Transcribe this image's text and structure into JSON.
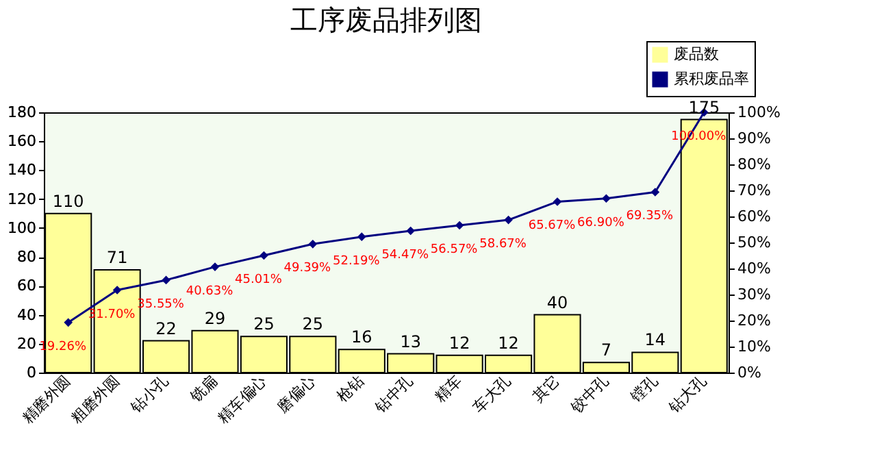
{
  "chart_data": {
    "type": "bar",
    "title": "工序废品排列图",
    "categories": [
      "精磨外圆",
      "粗磨外圆",
      "钻小孔",
      "铣扁",
      "精车偏心",
      "磨偏心",
      "枪钻",
      "钻中孔",
      "精车",
      "车大孔",
      "其它",
      "铰中孔",
      "镗孔",
      "钻大孔"
    ],
    "series": [
      {
        "name": "废品数",
        "color": "#ffff99",
        "values": [
          110,
          71,
          22,
          29,
          25,
          25,
          16,
          13,
          12,
          12,
          40,
          7,
          14,
          175
        ]
      },
      {
        "name": "累积废品率",
        "type": "line",
        "axis": "y2",
        "color": "#000080",
        "values": [
          19.26,
          31.7,
          35.55,
          40.63,
          45.01,
          49.39,
          52.19,
          54.47,
          56.57,
          58.67,
          65.67,
          66.9,
          69.35,
          100.0
        ],
        "value_labels": [
          "19.26%",
          "31.70%",
          "35.55%",
          "40.63%",
          "45.01%",
          "49.39%",
          "52.19%",
          "54.47%",
          "56.57%",
          "58.67%",
          "65.67%",
          "66.90%",
          "69.35%",
          "100.00%"
        ]
      }
    ],
    "data_labels": true,
    "marker": "diamond",
    "legend": "top right",
    "grid": false,
    "ylim": [
      0,
      180
    ],
    "yticks": [
      0,
      20,
      40,
      60,
      80,
      100,
      120,
      140,
      160,
      180
    ],
    "y2lim": [
      0,
      100
    ],
    "y2ticks": [
      {
        "value": 0,
        "label": "0%"
      },
      {
        "value": 10,
        "label": "10%"
      },
      {
        "value": 20,
        "label": "20%"
      },
      {
        "value": 30,
        "label": "30%"
      },
      {
        "value": 40,
        "label": "40%"
      },
      {
        "value": 50,
        "label": "50%"
      },
      {
        "value": 60,
        "label": "60%"
      },
      {
        "value": 70,
        "label": "70%"
      },
      {
        "value": 80,
        "label": "80%"
      },
      {
        "value": 90,
        "label": "90%"
      },
      {
        "value": 100,
        "label": "100%"
      }
    ]
  }
}
